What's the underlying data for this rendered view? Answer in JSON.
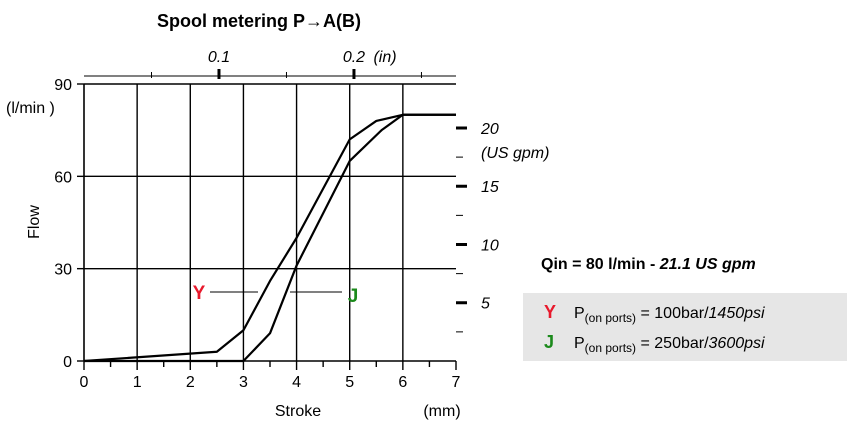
{
  "chart_data": {
    "type": "line",
    "title": "Spool metering P→A(B)",
    "xlabel": "Stroke",
    "x_unit": "(mm)",
    "ylabel": "Flow",
    "y_unit": "(l/min )",
    "xlim": [
      0,
      7
    ],
    "ylim": [
      0,
      90
    ],
    "x_ticks": [
      "0",
      "1",
      "2",
      "3",
      "4",
      "5",
      "6",
      "7"
    ],
    "y_ticks": [
      "0",
      "30",
      "60",
      "90"
    ],
    "top_axis": {
      "ticks": [
        "0.1",
        "0.2"
      ],
      "unit": "(in)"
    },
    "right_axis": {
      "ticks": [
        "5",
        "10",
        "15",
        "20"
      ],
      "unit": "(US gpm)"
    },
    "grid": true,
    "series": [
      {
        "name": "Y",
        "color": "#e8192c",
        "x": [
          0,
          2.5,
          3.0,
          3.5,
          4.0,
          5.0,
          5.5,
          6.0,
          7.0
        ],
        "y": [
          0,
          3,
          10,
          26,
          40,
          72,
          78,
          80,
          80
        ]
      },
      {
        "name": "J",
        "color": "#1b8a1b",
        "x": [
          0,
          3.0,
          3.5,
          4.0,
          5.0,
          5.6,
          6.0,
          7.0
        ],
        "y": [
          0,
          0,
          9,
          31,
          65,
          75,
          80,
          80
        ]
      }
    ]
  },
  "qin": {
    "label": "Qin = 80 l/min",
    "sep": "-",
    "value": "21.1 US gpm"
  },
  "legend": [
    {
      "mark": "Y",
      "label": "P",
      "sub": "(on ports)",
      "value": " = 100bar/",
      "alt": "1450psi"
    },
    {
      "mark": "J",
      "label": "P",
      "sub": "(on ports)",
      "value": " = 250bar/",
      "alt": "3600psi"
    }
  ]
}
